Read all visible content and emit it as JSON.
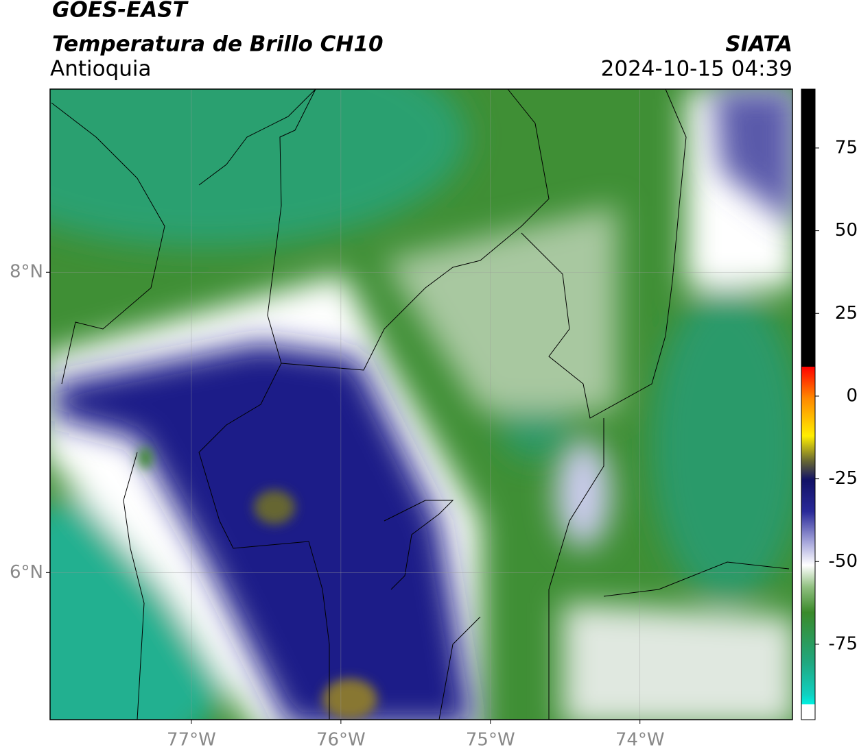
{
  "header": {
    "title": "GOES-EAST",
    "subtitle": "Temperatura de Brillo CH10",
    "region": "Antioquia",
    "source": "SIATA",
    "datetime": "2024-10-15 04:39"
  },
  "map": {
    "lonlim": [
      -77.945,
      -72.98
    ],
    "latlim": [
      5.02,
      9.22
    ],
    "lonticks": [
      {
        "value": -77,
        "label": "77°W"
      },
      {
        "value": -76,
        "label": "76°W"
      },
      {
        "value": -75,
        "label": "75°W"
      },
      {
        "value": -74,
        "label": "74°W"
      }
    ],
    "latticks": [
      {
        "value": 8,
        "label": "8°N"
      },
      {
        "value": 6,
        "label": "6°N"
      }
    ]
  },
  "colorbar": {
    "lim": [
      -97.8,
      92.8
    ],
    "ticks": [
      75,
      50,
      25,
      0,
      -25,
      -50,
      -75
    ]
  }
}
